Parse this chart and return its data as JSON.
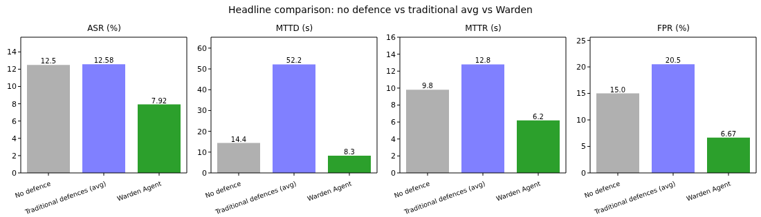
{
  "chart_data": [
    {
      "type": "bar",
      "title": "ASR (%)",
      "annotations": [
        "Headline comparison: no defence vs traditional avg vs Warden"
      ],
      "categories": [
        "No defence",
        "Traditional defences (avg)",
        "Warden Agent"
      ],
      "values": [
        12.5,
        12.58,
        7.92
      ],
      "colors": [
        "#b0b0b0",
        "#8080ff",
        "#2ca02c"
      ],
      "value_labels": [
        "12.5",
        "12.58",
        "7.92"
      ],
      "ylim": [
        0,
        15.7
      ],
      "yticks": [
        0,
        2,
        4,
        6,
        8,
        10,
        12,
        14
      ],
      "grid": false
    },
    {
      "type": "bar",
      "title": "MTTD (s)",
      "categories": [
        "No defence",
        "Traditional defences (avg)",
        "Warden Agent"
      ],
      "values": [
        14.4,
        52.2,
        8.3
      ],
      "colors": [
        "#b0b0b0",
        "#8080ff",
        "#2ca02c"
      ],
      "value_labels": [
        "14.4",
        "52.2",
        "8.3"
      ],
      "ylim": [
        0,
        65.25
      ],
      "yticks": [
        0,
        10,
        20,
        30,
        40,
        50,
        60
      ],
      "grid": false
    },
    {
      "type": "bar",
      "title": "MTTR (s)",
      "categories": [
        "No defence",
        "Traditional defences (avg)",
        "Warden Agent"
      ],
      "values": [
        9.8,
        12.8,
        6.2
      ],
      "colors": [
        "#b0b0b0",
        "#8080ff",
        "#2ca02c"
      ],
      "value_labels": [
        "9.8",
        "12.8",
        "6.2"
      ],
      "ylim": [
        0,
        16
      ],
      "yticks": [
        0,
        2,
        4,
        6,
        8,
        10,
        12,
        14,
        16
      ],
      "grid": false
    },
    {
      "type": "bar",
      "title": "FPR (%)",
      "categories": [
        "No defence",
        "Traditional defences (avg)",
        "Warden Agent"
      ],
      "values": [
        15.0,
        20.5,
        6.67
      ],
      "colors": [
        "#b0b0b0",
        "#8080ff",
        "#2ca02c"
      ],
      "value_labels": [
        "15.0",
        "20.5",
        "6.67"
      ],
      "ylim": [
        0,
        25.6
      ],
      "yticks": [
        0,
        5,
        10,
        15,
        20,
        25
      ],
      "grid": false
    }
  ]
}
